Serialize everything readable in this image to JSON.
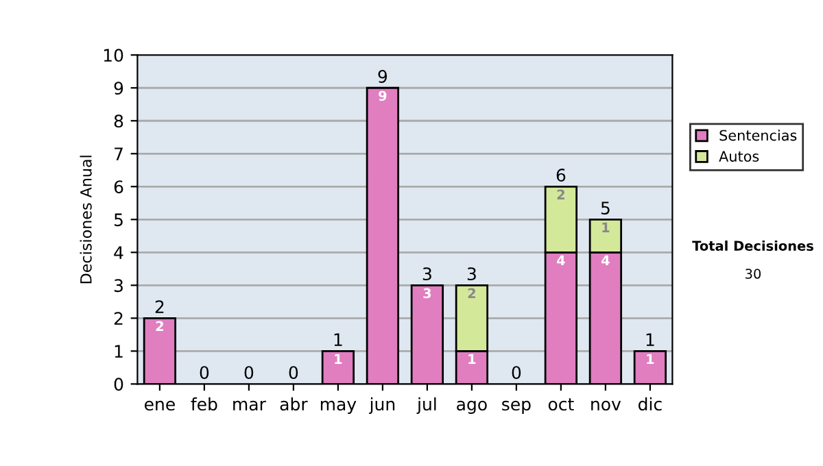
{
  "chart_data": {
    "type": "bar",
    "ylabel": "Decisiones Anual",
    "stacked": true,
    "categories": [
      "ene",
      "feb",
      "mar",
      "abr",
      "may",
      "jun",
      "jul",
      "ago",
      "sep",
      "oct",
      "nov",
      "dic"
    ],
    "series": [
      {
        "name": "Sentencias",
        "color": "#e07ec0",
        "values": [
          2,
          0,
          0,
          0,
          1,
          9,
          3,
          1,
          0,
          4,
          4,
          1
        ],
        "value_labels": [
          "2",
          null,
          null,
          null,
          "1",
          "9",
          "3",
          "1",
          null,
          "4",
          "4",
          "1"
        ]
      },
      {
        "name": "Autos",
        "color": "#d4e89a",
        "values": [
          0,
          0,
          0,
          0,
          0,
          0,
          0,
          2,
          0,
          2,
          1,
          0
        ],
        "value_labels": [
          null,
          null,
          null,
          null,
          null,
          null,
          null,
          "2",
          null,
          "2",
          "1",
          null
        ]
      }
    ],
    "totals": [
      "2",
      "0",
      "0",
      "0",
      "1",
      "9",
      "3",
      "3",
      "0",
      "6",
      "5",
      "1"
    ],
    "ylim": [
      0,
      10
    ],
    "yticks": [
      0,
      1,
      2,
      3,
      4,
      5,
      6,
      7,
      8,
      9,
      10
    ],
    "grid": "y",
    "legend": "right",
    "annotations": [
      "Total Decisiones",
      "30"
    ]
  }
}
